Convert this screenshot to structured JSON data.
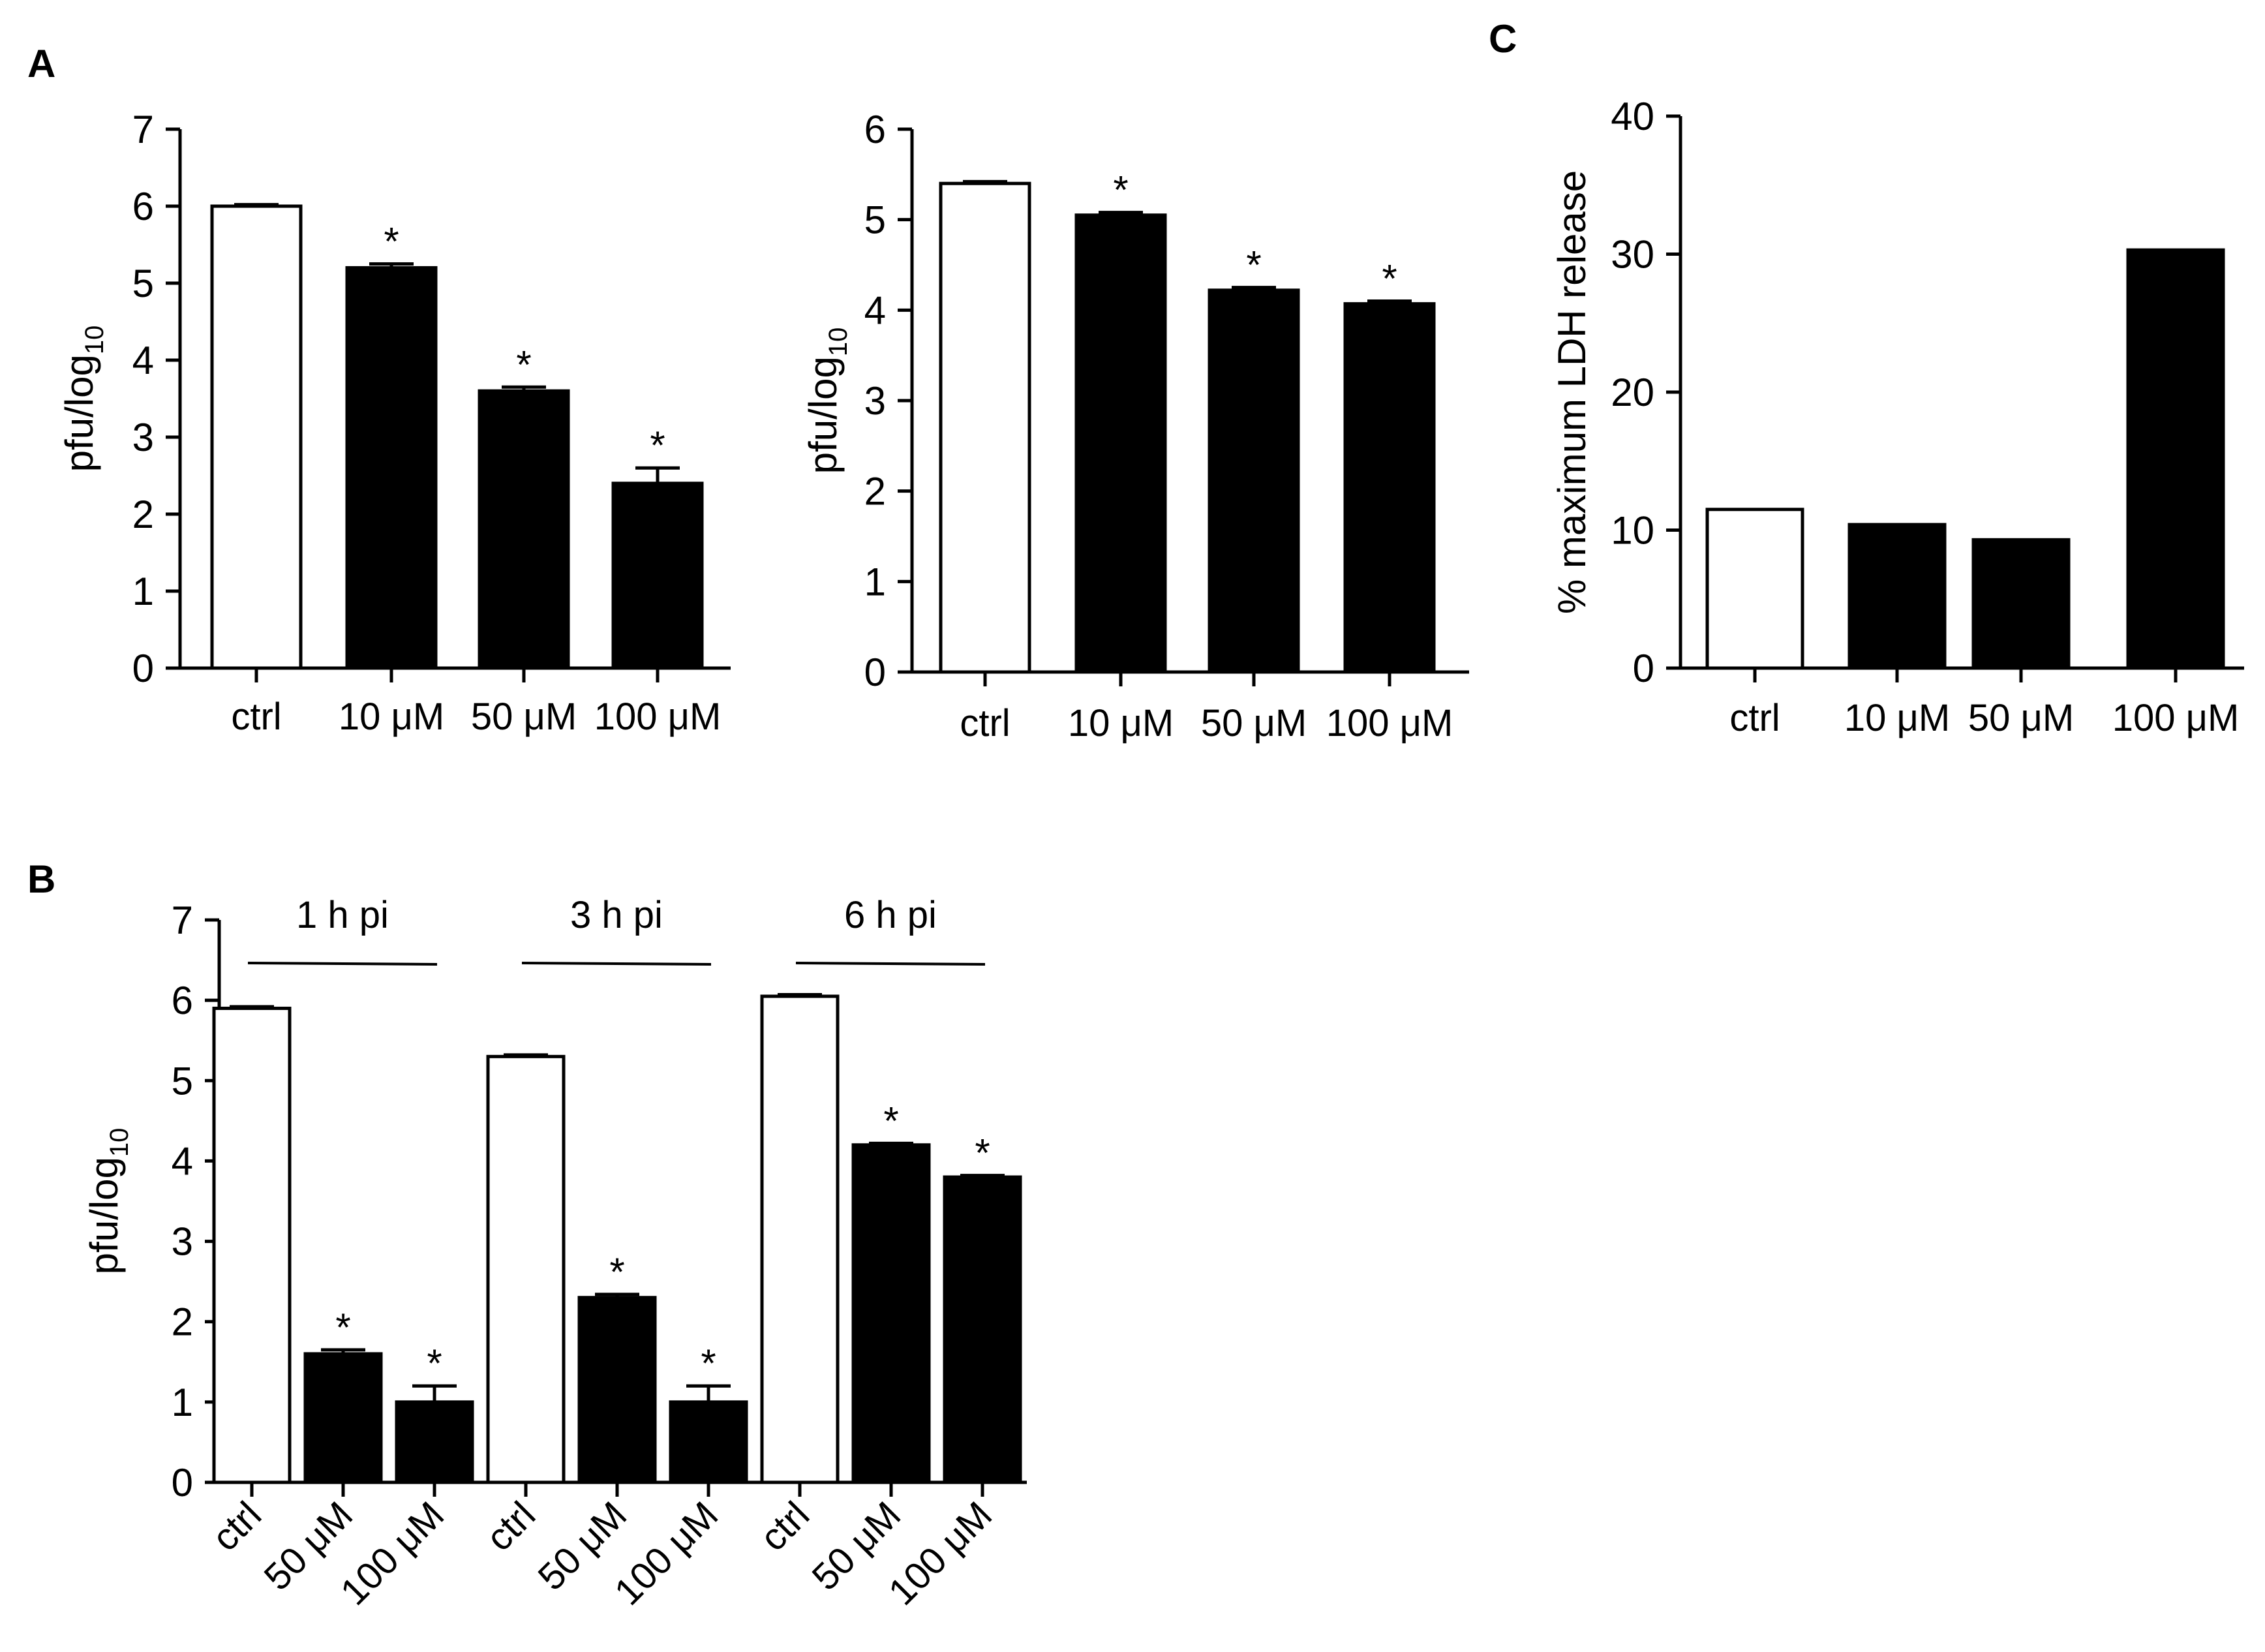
{
  "colors": {
    "ink": "#000000",
    "control_fill": "#ffffff",
    "treated_fill": "#000000"
  },
  "chart_data": [
    {
      "id": "A-left",
      "panel_label": "A",
      "type": "bar",
      "categories": [
        "ctrl",
        "10 μM",
        "50 μM",
        "100 μM"
      ],
      "values": [
        6.0,
        5.2,
        3.6,
        2.4
      ],
      "errors": [
        0.02,
        0.05,
        0.05,
        0.2
      ],
      "significance": [
        "",
        "*",
        "*",
        "*"
      ],
      "fills": [
        "white",
        "black",
        "black",
        "black"
      ],
      "ylabel_main": "pfu/log",
      "ylabel_sub": "10",
      "ylim": [
        0,
        7
      ],
      "y_ticks": [
        0,
        1,
        2,
        3,
        4,
        5,
        6,
        7
      ]
    },
    {
      "id": "A-right",
      "panel_label": "",
      "type": "bar",
      "categories": [
        "ctrl",
        "10 μM",
        "50 μM",
        "100 μM"
      ],
      "values": [
        5.4,
        5.05,
        4.22,
        4.07
      ],
      "errors": [
        0.02,
        0.03,
        0.03,
        0.03
      ],
      "significance": [
        "",
        "*",
        "*",
        "*"
      ],
      "fills": [
        "white",
        "black",
        "black",
        "black"
      ],
      "ylabel_main": "pfu/log",
      "ylabel_sub": "10",
      "ylim": [
        0,
        6
      ],
      "y_ticks": [
        0,
        1,
        2,
        3,
        4,
        5,
        6
      ]
    },
    {
      "id": "C",
      "panel_label": "C",
      "type": "bar",
      "categories": [
        "ctrl",
        "10 μM",
        "50 μM",
        "100 μM"
      ],
      "values": [
        11.5,
        10.4,
        9.3,
        30.3
      ],
      "errors": [
        0,
        0,
        0,
        0
      ],
      "significance": [
        "",
        "",
        "",
        ""
      ],
      "fills": [
        "white",
        "black",
        "black",
        "black"
      ],
      "ylabel_main": "% maximum LDH release",
      "ylabel_sub": "",
      "ylim": [
        0,
        40
      ],
      "y_ticks": [
        0,
        10,
        20,
        30,
        40
      ]
    },
    {
      "id": "B",
      "panel_label": "B",
      "type": "bar",
      "categories": [
        "ctrl",
        "50 μM",
        "100 μM",
        "ctrl",
        "50 μM",
        "100 μM",
        "ctrl",
        "50 μM",
        "100 μM"
      ],
      "groups": [
        {
          "label": "1 h pi",
          "start": 1,
          "end": 2
        },
        {
          "label": "3 h pi",
          "start": 4,
          "end": 5
        },
        {
          "label": "6 h pi",
          "start": 7,
          "end": 8
        }
      ],
      "values": [
        5.9,
        1.6,
        1.0,
        5.3,
        2.3,
        1.0,
        6.05,
        4.2,
        3.8
      ],
      "errors": [
        0.02,
        0.05,
        0.2,
        0.02,
        0.04,
        0.2,
        0.02,
        0.02,
        0.02
      ],
      "significance": [
        "",
        "*",
        "*",
        "",
        "*",
        "*",
        "",
        "*",
        "*"
      ],
      "fills": [
        "white",
        "black",
        "black",
        "white",
        "black",
        "black",
        "white",
        "black",
        "black"
      ],
      "ylabel_main": "pfu/log",
      "ylabel_sub": "10",
      "ylim": [
        0,
        7
      ],
      "y_ticks": [
        0,
        1,
        2,
        3,
        4,
        5,
        6,
        7
      ]
    }
  ]
}
